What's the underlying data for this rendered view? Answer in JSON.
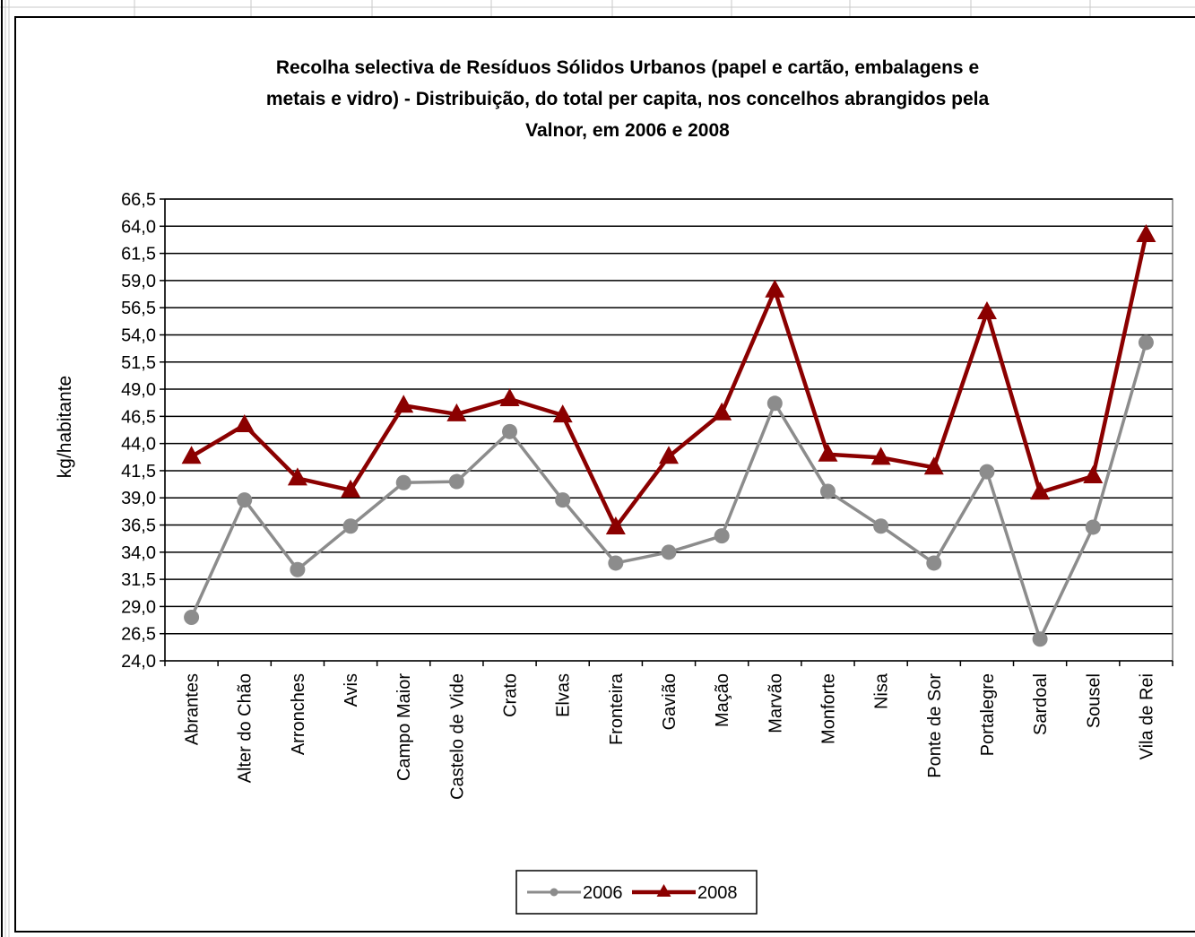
{
  "chart_data": {
    "type": "line",
    "title_lines": [
      "Recolha selectiva de Resíduos Sólidos Urbanos (papel e cartão, embalagens e",
      "metais e vidro) - Distribuição, do total per capita, nos concelhos abrangidos pela",
      "Valnor, em 2006 e 2008"
    ],
    "ylabel": "kg/habitante",
    "xlabel": "",
    "ylim": [
      24.0,
      66.5
    ],
    "ytick_step": 2.5,
    "yticks": [
      "24,0",
      "26,5",
      "29,0",
      "31,5",
      "34,0",
      "36,5",
      "39,0",
      "41,5",
      "44,0",
      "46,5",
      "49,0",
      "51,5",
      "54,0",
      "56,5",
      "59,0",
      "61,5",
      "64,0",
      "66,5"
    ],
    "grid": true,
    "legend_position": "bottom-center",
    "categories": [
      "Abrantes",
      "Alter do Chão",
      "Arronches",
      "Avis",
      "Campo Maior",
      "Castelo de Vide",
      "Crato",
      "Elvas",
      "Fronteira",
      "Gavião",
      "Mação",
      "Marvão",
      "Monforte",
      "Nisa",
      "Ponte de Sor",
      "Portalegre",
      "Sardoal",
      "Sousel",
      "Vila de Rei"
    ],
    "series": [
      {
        "name": "2006",
        "color": "#8c8c8c",
        "marker": "circle",
        "values": [
          28.0,
          38.8,
          32.4,
          36.4,
          40.4,
          40.5,
          45.1,
          38.8,
          33.0,
          34.0,
          35.5,
          47.7,
          39.6,
          36.4,
          33.0,
          41.4,
          26.0,
          36.3,
          53.3
        ]
      },
      {
        "name": "2008",
        "color": "#8b0000",
        "marker": "triangle",
        "values": [
          42.8,
          45.7,
          40.8,
          39.7,
          47.5,
          46.7,
          48.1,
          46.6,
          36.3,
          42.8,
          46.8,
          58.1,
          43.0,
          42.7,
          41.8,
          56.1,
          39.5,
          41.0,
          63.2
        ]
      }
    ]
  }
}
